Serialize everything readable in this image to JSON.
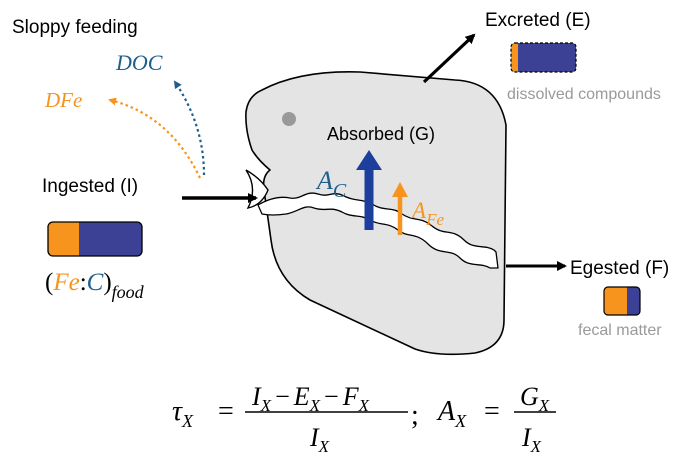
{
  "labels": {
    "sloppy_feeding": "Sloppy feeding",
    "doc": "DOC",
    "dfe": "DFe",
    "excreted": "Excreted (E)",
    "dissolved_compounds": "dissolved compounds",
    "absorbed": "Absorbed (G)",
    "ingested": "Ingested (I)",
    "egested": "Egested (F)",
    "fecal_matter": "fecal matter"
  },
  "ratio": {
    "open": "(",
    "fe": "Fe",
    "colon": ":",
    "c": "C",
    "close": ")",
    "sub": "food"
  },
  "arrows": {
    "ac_main": "A",
    "ac_sub": "C",
    "afe_main": "A",
    "afe_sub": "Fe"
  },
  "equation": {
    "tau": "τ",
    "x": "X",
    "eq": "=",
    "num1_parts": [
      "I",
      "X",
      "−",
      "E",
      "X",
      "−",
      "F",
      "X"
    ],
    "den1_main": "I",
    "den1_sub": "X",
    "semicolon": ";",
    "a_main": "A",
    "a_sub": "X",
    "num2_main": "G",
    "num2_sub": "X",
    "den2_main": "I",
    "den2_sub": "X"
  },
  "colors": {
    "fe_orange": "#f7941d",
    "c_blue": "#3d4196",
    "doc_blue": "#1f5f8b",
    "cell_gray": "#e4e4e4",
    "dot_gray": "#999999",
    "caption_gray": "#9a9a9a",
    "arrow_blue": "#1c3f9e"
  },
  "icons": {
    "food_bar": "fe-c-ratio-bar",
    "excreted_bar": "fe-c-ratio-bar",
    "egested_bar": "fe-c-ratio-bar"
  }
}
